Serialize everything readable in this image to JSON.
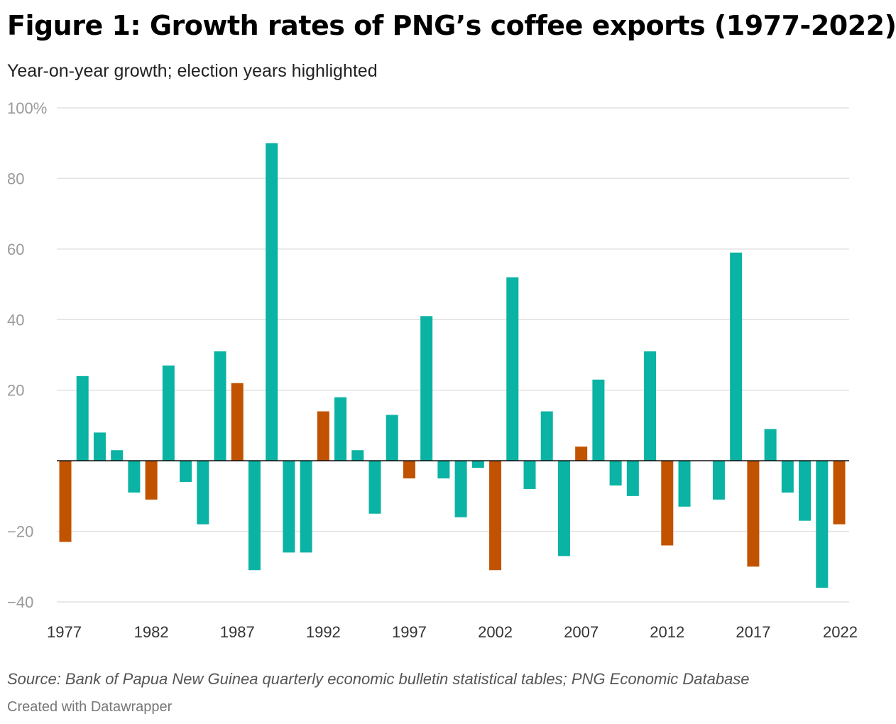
{
  "title": "Figure 1: Growth rates of PNG’s coffee exports (1977-2022)",
  "subtitle": "Year-on-year growth; election years highlighted",
  "notes": "Source: Bank of Papua New Guinea quarterly economic bulletin statistical tables; PNG Economic Database",
  "credit": "Created with Datawrapper",
  "colors": {
    "regular": "#0ab3a3",
    "election": "#c15300",
    "grid": "#e2e2e2",
    "baseline": "#000000"
  },
  "chart_data": {
    "type": "bar",
    "ylim": [
      -40,
      100
    ],
    "y_ticks": [
      "100%",
      "80",
      "60",
      "40",
      "20",
      "",
      "−20",
      "−40"
    ],
    "x_ticks": [
      "1977",
      "1982",
      "1987",
      "1992",
      "1997",
      "2002",
      "2007",
      "2012",
      "2017",
      "2022"
    ],
    "grid": true,
    "categories": [
      1977,
      1978,
      1979,
      1980,
      1981,
      1982,
      1983,
      1984,
      1985,
      1986,
      1987,
      1988,
      1989,
      1990,
      1991,
      1992,
      1993,
      1994,
      1995,
      1996,
      1997,
      1998,
      1999,
      2000,
      2001,
      2002,
      2003,
      2004,
      2005,
      2006,
      2007,
      2008,
      2009,
      2010,
      2011,
      2012,
      2013,
      2014,
      2015,
      2016,
      2017,
      2018,
      2019,
      2020,
      2021,
      2022
    ],
    "values": [
      -23,
      24,
      8,
      3,
      -9,
      -11,
      27,
      -6,
      -18,
      31,
      22,
      -31,
      90,
      -26,
      -26,
      14,
      18,
      3,
      -15,
      13,
      -5,
      41,
      -5,
      -16,
      -2,
      -31,
      52,
      -8,
      14,
      -27,
      4,
      23,
      -7,
      -10,
      31,
      -24,
      -13,
      0,
      -11,
      59,
      -30,
      9,
      -9,
      -17,
      -36,
      -18
    ],
    "election_years": [
      1977,
      1982,
      1987,
      1992,
      1997,
      2002,
      2007,
      2012,
      2017,
      2022
    ]
  }
}
